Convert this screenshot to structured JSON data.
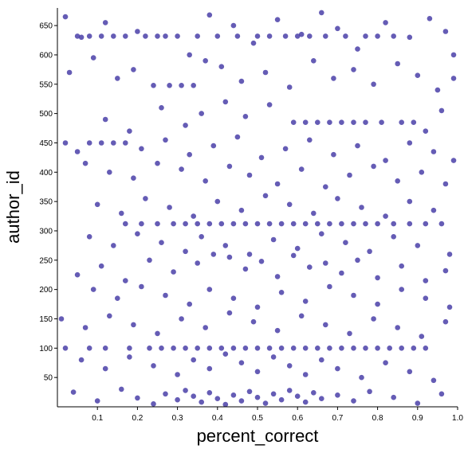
{
  "chart_data": {
    "type": "scatter",
    "title": "",
    "xlabel": "percent_correct",
    "ylabel": "author_id",
    "xlim": [
      0.0,
      1.0
    ],
    "ylim": [
      0,
      680
    ],
    "x_ticks": [
      0.1,
      0.2,
      0.3,
      0.4,
      0.5,
      0.6,
      0.7,
      0.8,
      0.9,
      1.0
    ],
    "x_tick_labels": [
      "0.1",
      "0.2",
      "0.3",
      "0.4",
      "0.5",
      "0.6",
      "0.7",
      "0.8",
      "0.9",
      "1.0"
    ],
    "y_ticks": [
      50,
      100,
      150,
      200,
      250,
      300,
      350,
      400,
      450,
      500,
      550,
      600,
      650
    ],
    "y_tick_labels": [
      "50",
      "100",
      "150",
      "200",
      "250",
      "300",
      "350",
      "400",
      "450",
      "500",
      "550",
      "600",
      "650"
    ],
    "grid": false,
    "legend": "none",
    "marker_color": "#4a3fa8",
    "marker_opacity": 0.85,
    "series": [
      {
        "name": "",
        "points": [
          [
            0.02,
            665
          ],
          [
            0.06,
            630
          ],
          [
            0.12,
            655
          ],
          [
            0.2,
            640
          ],
          [
            0.27,
            632
          ],
          [
            0.33,
            600
          ],
          [
            0.38,
            668
          ],
          [
            0.44,
            650
          ],
          [
            0.49,
            620
          ],
          [
            0.55,
            660
          ],
          [
            0.61,
            635
          ],
          [
            0.66,
            672
          ],
          [
            0.7,
            645
          ],
          [
            0.75,
            610
          ],
          [
            0.82,
            655
          ],
          [
            0.88,
            630
          ],
          [
            0.93,
            662
          ],
          [
            0.97,
            640
          ],
          [
            0.99,
            600
          ],
          [
            0.05,
            632
          ],
          [
            0.08,
            632
          ],
          [
            0.11,
            632
          ],
          [
            0.14,
            632
          ],
          [
            0.17,
            632
          ],
          [
            0.22,
            632
          ],
          [
            0.25,
            632
          ],
          [
            0.3,
            632
          ],
          [
            0.35,
            632
          ],
          [
            0.4,
            632
          ],
          [
            0.45,
            632
          ],
          [
            0.5,
            632
          ],
          [
            0.53,
            632
          ],
          [
            0.57,
            632
          ],
          [
            0.6,
            632
          ],
          [
            0.63,
            632
          ],
          [
            0.67,
            632
          ],
          [
            0.72,
            632
          ],
          [
            0.77,
            632
          ],
          [
            0.8,
            632
          ],
          [
            0.84,
            632
          ],
          [
            0.03,
            570
          ],
          [
            0.09,
            595
          ],
          [
            0.15,
            560
          ],
          [
            0.19,
            575
          ],
          [
            0.24,
            548
          ],
          [
            0.28,
            548
          ],
          [
            0.31,
            548
          ],
          [
            0.34,
            548
          ],
          [
            0.37,
            590
          ],
          [
            0.41,
            580
          ],
          [
            0.46,
            555
          ],
          [
            0.52,
            570
          ],
          [
            0.58,
            545
          ],
          [
            0.64,
            590
          ],
          [
            0.69,
            560
          ],
          [
            0.74,
            575
          ],
          [
            0.79,
            550
          ],
          [
            0.85,
            585
          ],
          [
            0.9,
            565
          ],
          [
            0.95,
            540
          ],
          [
            0.99,
            560
          ],
          [
            0.12,
            490
          ],
          [
            0.18,
            470
          ],
          [
            0.26,
            510
          ],
          [
            0.32,
            480
          ],
          [
            0.36,
            500
          ],
          [
            0.42,
            520
          ],
          [
            0.47,
            495
          ],
          [
            0.53,
            515
          ],
          [
            0.59,
            485
          ],
          [
            0.62,
            485
          ],
          [
            0.65,
            485
          ],
          [
            0.68,
            485
          ],
          [
            0.71,
            485
          ],
          [
            0.74,
            485
          ],
          [
            0.77,
            485
          ],
          [
            0.81,
            485
          ],
          [
            0.86,
            485
          ],
          [
            0.89,
            485
          ],
          [
            0.92,
            470
          ],
          [
            0.96,
            505
          ],
          [
            0.02,
            450
          ],
          [
            0.05,
            435
          ],
          [
            0.08,
            450
          ],
          [
            0.11,
            450
          ],
          [
            0.14,
            450
          ],
          [
            0.17,
            450
          ],
          [
            0.21,
            440
          ],
          [
            0.27,
            455
          ],
          [
            0.33,
            430
          ],
          [
            0.39,
            445
          ],
          [
            0.45,
            460
          ],
          [
            0.51,
            425
          ],
          [
            0.57,
            440
          ],
          [
            0.63,
            455
          ],
          [
            0.69,
            430
          ],
          [
            0.75,
            445
          ],
          [
            0.82,
            420
          ],
          [
            0.88,
            450
          ],
          [
            0.94,
            435
          ],
          [
            0.99,
            420
          ],
          [
            0.07,
            415
          ],
          [
            0.13,
            400
          ],
          [
            0.19,
            390
          ],
          [
            0.25,
            415
          ],
          [
            0.31,
            405
          ],
          [
            0.37,
            385
          ],
          [
            0.43,
            410
          ],
          [
            0.48,
            395
          ],
          [
            0.55,
            380
          ],
          [
            0.61,
            405
          ],
          [
            0.67,
            375
          ],
          [
            0.73,
            395
          ],
          [
            0.79,
            410
          ],
          [
            0.85,
            385
          ],
          [
            0.91,
            400
          ],
          [
            0.97,
            380
          ],
          [
            0.1,
            345
          ],
          [
            0.16,
            330
          ],
          [
            0.22,
            355
          ],
          [
            0.28,
            340
          ],
          [
            0.34,
            325
          ],
          [
            0.4,
            350
          ],
          [
            0.46,
            335
          ],
          [
            0.52,
            360
          ],
          [
            0.58,
            345
          ],
          [
            0.64,
            330
          ],
          [
            0.7,
            355
          ],
          [
            0.76,
            340
          ],
          [
            0.82,
            325
          ],
          [
            0.88,
            350
          ],
          [
            0.94,
            335
          ],
          [
            0.17,
            312
          ],
          [
            0.21,
            312
          ],
          [
            0.25,
            312
          ],
          [
            0.29,
            312
          ],
          [
            0.32,
            312
          ],
          [
            0.35,
            312
          ],
          [
            0.38,
            312
          ],
          [
            0.41,
            312
          ],
          [
            0.44,
            312
          ],
          [
            0.47,
            312
          ],
          [
            0.5,
            312
          ],
          [
            0.53,
            312
          ],
          [
            0.56,
            312
          ],
          [
            0.59,
            312
          ],
          [
            0.62,
            312
          ],
          [
            0.65,
            312
          ],
          [
            0.68,
            312
          ],
          [
            0.71,
            312
          ],
          [
            0.74,
            312
          ],
          [
            0.77,
            312
          ],
          [
            0.8,
            312
          ],
          [
            0.84,
            312
          ],
          [
            0.88,
            312
          ],
          [
            0.92,
            312
          ],
          [
            0.96,
            312
          ],
          [
            0.08,
            290
          ],
          [
            0.14,
            275
          ],
          [
            0.2,
            295
          ],
          [
            0.26,
            280
          ],
          [
            0.32,
            265
          ],
          [
            0.36,
            290
          ],
          [
            0.42,
            275
          ],
          [
            0.48,
            260
          ],
          [
            0.54,
            285
          ],
          [
            0.6,
            270
          ],
          [
            0.66,
            295
          ],
          [
            0.72,
            280
          ],
          [
            0.78,
            265
          ],
          [
            0.84,
            290
          ],
          [
            0.9,
            275
          ],
          [
            0.98,
            260
          ],
          [
            0.05,
            225
          ],
          [
            0.11,
            240
          ],
          [
            0.17,
            215
          ],
          [
            0.23,
            250
          ],
          [
            0.29,
            230
          ],
          [
            0.35,
            245
          ],
          [
            0.39,
            260
          ],
          [
            0.43,
            255
          ],
          [
            0.47,
            235
          ],
          [
            0.51,
            248
          ],
          [
            0.55,
            222
          ],
          [
            0.59,
            258
          ],
          [
            0.63,
            238
          ],
          [
            0.67,
            245
          ],
          [
            0.71,
            228
          ],
          [
            0.75,
            250
          ],
          [
            0.8,
            220
          ],
          [
            0.86,
            240
          ],
          [
            0.92,
            215
          ],
          [
            0.97,
            232
          ],
          [
            0.09,
            200
          ],
          [
            0.15,
            185
          ],
          [
            0.21,
            205
          ],
          [
            0.27,
            190
          ],
          [
            0.33,
            175
          ],
          [
            0.38,
            200
          ],
          [
            0.44,
            185
          ],
          [
            0.5,
            170
          ],
          [
            0.56,
            195
          ],
          [
            0.62,
            180
          ],
          [
            0.68,
            205
          ],
          [
            0.74,
            190
          ],
          [
            0.8,
            175
          ],
          [
            0.86,
            200
          ],
          [
            0.92,
            185
          ],
          [
            0.98,
            170
          ],
          [
            0.01,
            150
          ],
          [
            0.07,
            135
          ],
          [
            0.13,
            155
          ],
          [
            0.19,
            140
          ],
          [
            0.25,
            125
          ],
          [
            0.31,
            150
          ],
          [
            0.37,
            135
          ],
          [
            0.43,
            160
          ],
          [
            0.49,
            145
          ],
          [
            0.55,
            130
          ],
          [
            0.61,
            155
          ],
          [
            0.67,
            140
          ],
          [
            0.73,
            125
          ],
          [
            0.79,
            150
          ],
          [
            0.85,
            135
          ],
          [
            0.91,
            120
          ],
          [
            0.97,
            145
          ],
          [
            0.02,
            100
          ],
          [
            0.08,
            100
          ],
          [
            0.12,
            100
          ],
          [
            0.18,
            100
          ],
          [
            0.23,
            100
          ],
          [
            0.26,
            100
          ],
          [
            0.29,
            100
          ],
          [
            0.32,
            100
          ],
          [
            0.35,
            100
          ],
          [
            0.38,
            100
          ],
          [
            0.41,
            100
          ],
          [
            0.44,
            100
          ],
          [
            0.47,
            100
          ],
          [
            0.5,
            100
          ],
          [
            0.53,
            100
          ],
          [
            0.56,
            100
          ],
          [
            0.59,
            100
          ],
          [
            0.62,
            100
          ],
          [
            0.65,
            100
          ],
          [
            0.68,
            100
          ],
          [
            0.71,
            100
          ],
          [
            0.74,
            100
          ],
          [
            0.77,
            100
          ],
          [
            0.8,
            100
          ],
          [
            0.83,
            100
          ],
          [
            0.86,
            100
          ],
          [
            0.89,
            100
          ],
          [
            0.92,
            100
          ],
          [
            0.06,
            80
          ],
          [
            0.12,
            65
          ],
          [
            0.18,
            85
          ],
          [
            0.24,
            70
          ],
          [
            0.3,
            55
          ],
          [
            0.34,
            80
          ],
          [
            0.38,
            65
          ],
          [
            0.42,
            90
          ],
          [
            0.46,
            75
          ],
          [
            0.5,
            60
          ],
          [
            0.54,
            85
          ],
          [
            0.58,
            70
          ],
          [
            0.62,
            55
          ],
          [
            0.66,
            80
          ],
          [
            0.7,
            65
          ],
          [
            0.76,
            50
          ],
          [
            0.82,
            75
          ],
          [
            0.88,
            60
          ],
          [
            0.94,
            45
          ],
          [
            0.04,
            25
          ],
          [
            0.1,
            10
          ],
          [
            0.16,
            30
          ],
          [
            0.2,
            15
          ],
          [
            0.24,
            5
          ],
          [
            0.27,
            22
          ],
          [
            0.3,
            12
          ],
          [
            0.32,
            28
          ],
          [
            0.34,
            18
          ],
          [
            0.36,
            8
          ],
          [
            0.38,
            24
          ],
          [
            0.4,
            14
          ],
          [
            0.42,
            4
          ],
          [
            0.44,
            20
          ],
          [
            0.46,
            10
          ],
          [
            0.48,
            26
          ],
          [
            0.5,
            16
          ],
          [
            0.52,
            6
          ],
          [
            0.54,
            22
          ],
          [
            0.56,
            12
          ],
          [
            0.58,
            28
          ],
          [
            0.6,
            18
          ],
          [
            0.62,
            8
          ],
          [
            0.64,
            24
          ],
          [
            0.66,
            14
          ],
          [
            0.7,
            20
          ],
          [
            0.74,
            10
          ],
          [
            0.78,
            26
          ],
          [
            0.84,
            16
          ],
          [
            0.9,
            6
          ],
          [
            0.96,
            22
          ]
        ]
      }
    ]
  }
}
